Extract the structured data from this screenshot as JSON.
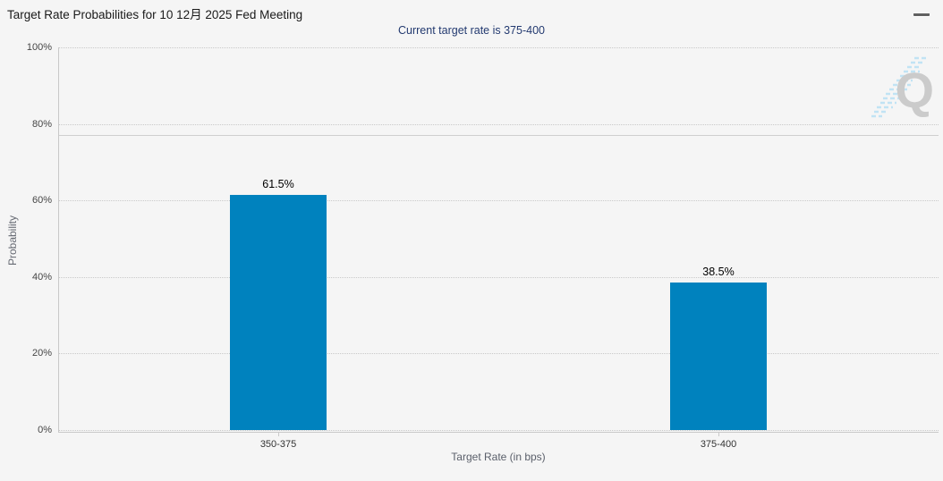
{
  "header": {
    "title": "Target Rate Probabilities for 10 12月 2025 Fed Meeting",
    "subtitle": "Current target rate is 375-400",
    "menu_icon": "hamburger-menu"
  },
  "watermark": {
    "icon": "quikstrike-q-logo",
    "letter": "Q"
  },
  "colors": {
    "background": "#f5f5f5",
    "bar": "#0082be",
    "subtitle_text": "#233a70",
    "grid": "#c9c9c9"
  },
  "chart_data": {
    "type": "bar",
    "title": "Target Rate Probabilities for 10 12月 2025 Fed Meeting",
    "subtitle": "Current target rate is 375-400",
    "categories": [
      "350-375",
      "375-400"
    ],
    "values": [
      61.5,
      38.5
    ],
    "value_labels": [
      "61.5%",
      "38.5%"
    ],
    "xlabel": "Target Rate (in bps)",
    "ylabel": "Probability",
    "ylim": [
      0,
      100
    ],
    "ytick_values": [
      0,
      20,
      40,
      60,
      80,
      100
    ],
    "yticks": [
      "0%",
      "20%",
      "40%",
      "60%",
      "80%",
      "100%"
    ],
    "grid": "horizontal-dotted",
    "plotline_value": 77,
    "bar_color": "#0082be",
    "legend_position": "none"
  }
}
